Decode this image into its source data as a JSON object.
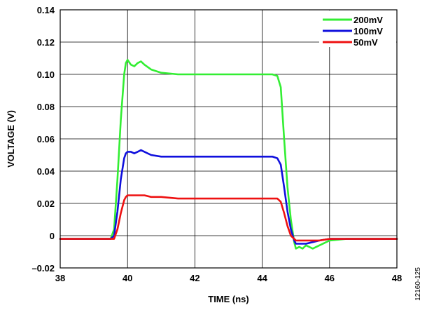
{
  "chart_data": {
    "type": "line",
    "xlabel": "TIME (ns)",
    "ylabel": "VOLTAGE (V)",
    "xlim": [
      38,
      48
    ],
    "ylim": [
      -0.02,
      0.14
    ],
    "xticks": [
      38,
      40,
      42,
      44,
      46,
      48
    ],
    "xtick_labels": [
      "38",
      "40",
      "42",
      "44",
      "46",
      "48"
    ],
    "yticks": [
      -0.02,
      0,
      0.02,
      0.04,
      0.06,
      0.08,
      0.1,
      0.12,
      0.14
    ],
    "ytick_labels": [
      "–0.02",
      "0",
      "0.02",
      "0.04",
      "0.06",
      "0.08",
      "0.10",
      "0.12",
      "0.14"
    ],
    "grid": true,
    "legend_position": "top-right",
    "figure_id": "12160-125",
    "series": [
      {
        "name": "200mV",
        "color": "#33ee33",
        "x": [
          38,
          38.5,
          39,
          39.5,
          39.6,
          39.7,
          39.8,
          39.9,
          39.95,
          40.0,
          40.1,
          40.2,
          40.3,
          40.4,
          40.5,
          40.7,
          41.0,
          41.5,
          42.0,
          42.5,
          43.0,
          43.5,
          44.0,
          44.3,
          44.45,
          44.55,
          44.65,
          44.75,
          44.85,
          44.95,
          45.0,
          45.1,
          45.2,
          45.3,
          45.5,
          45.7,
          46.0,
          46.5,
          47.0,
          47.5,
          48.0
        ],
        "y": [
          -0.002,
          -0.002,
          -0.002,
          -0.002,
          0.004,
          0.035,
          0.072,
          0.1,
          0.107,
          0.109,
          0.106,
          0.105,
          0.107,
          0.108,
          0.106,
          0.103,
          0.101,
          0.1,
          0.1,
          0.1,
          0.1,
          0.1,
          0.1,
          0.1,
          0.099,
          0.092,
          0.06,
          0.03,
          0.01,
          -0.004,
          -0.008,
          -0.007,
          -0.008,
          -0.006,
          -0.008,
          -0.006,
          -0.003,
          -0.002,
          -0.002,
          -0.002,
          -0.002
        ]
      },
      {
        "name": "100mV",
        "color": "#1010dd",
        "x": [
          38,
          38.5,
          39,
          39.5,
          39.6,
          39.7,
          39.8,
          39.9,
          39.95,
          40.0,
          40.1,
          40.2,
          40.3,
          40.4,
          40.5,
          40.7,
          41.0,
          41.5,
          42.0,
          42.5,
          43.0,
          43.5,
          44.0,
          44.3,
          44.45,
          44.55,
          44.65,
          44.75,
          44.85,
          44.95,
          45.0,
          45.1,
          45.2,
          45.3,
          45.5,
          45.7,
          46.0,
          46.5,
          47.0,
          47.5,
          48.0
        ],
        "y": [
          -0.002,
          -0.002,
          -0.002,
          -0.002,
          0.0,
          0.015,
          0.035,
          0.048,
          0.051,
          0.052,
          0.052,
          0.051,
          0.052,
          0.053,
          0.052,
          0.05,
          0.049,
          0.049,
          0.049,
          0.049,
          0.049,
          0.049,
          0.049,
          0.049,
          0.048,
          0.044,
          0.03,
          0.015,
          0.004,
          -0.003,
          -0.005,
          -0.005,
          -0.005,
          -0.005,
          -0.004,
          -0.003,
          -0.002,
          -0.002,
          -0.002,
          -0.002,
          -0.002
        ]
      },
      {
        "name": "50mV",
        "color": "#ee1111",
        "x": [
          38,
          38.5,
          39,
          39.5,
          39.6,
          39.7,
          39.8,
          39.9,
          39.95,
          40.0,
          40.1,
          40.2,
          40.3,
          40.4,
          40.5,
          40.7,
          41.0,
          41.5,
          42.0,
          42.5,
          43.0,
          43.5,
          44.0,
          44.3,
          44.45,
          44.55,
          44.65,
          44.75,
          44.85,
          44.95,
          45.0,
          45.1,
          45.2,
          45.3,
          45.5,
          45.7,
          46.0,
          46.5,
          47.0,
          47.5,
          48.0
        ],
        "y": [
          -0.002,
          -0.002,
          -0.002,
          -0.002,
          -0.002,
          0.004,
          0.014,
          0.022,
          0.024,
          0.025,
          0.025,
          0.025,
          0.025,
          0.025,
          0.025,
          0.024,
          0.024,
          0.023,
          0.023,
          0.023,
          0.023,
          0.023,
          0.023,
          0.023,
          0.023,
          0.021,
          0.014,
          0.006,
          0.0,
          -0.002,
          -0.003,
          -0.003,
          -0.003,
          -0.003,
          -0.003,
          -0.003,
          -0.002,
          -0.002,
          -0.002,
          -0.002,
          -0.002
        ]
      }
    ]
  }
}
